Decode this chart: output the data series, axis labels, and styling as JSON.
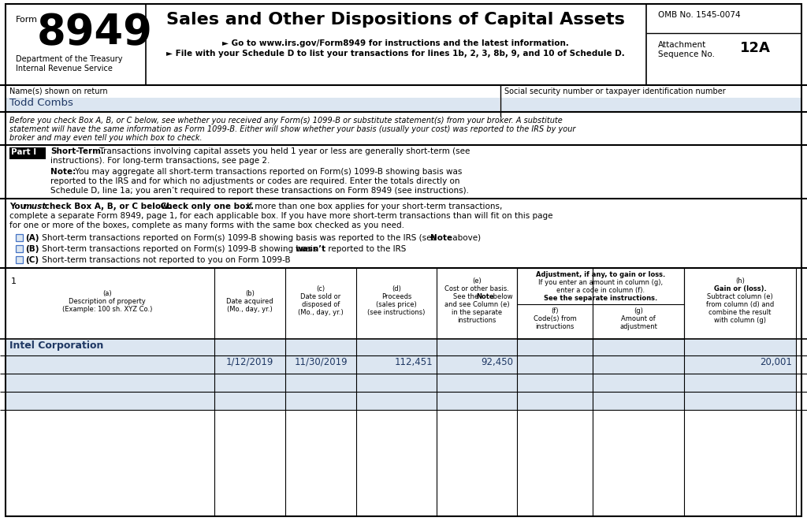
{
  "title": "Sales and Other Dispositions of Capital Assets",
  "form_number": "8949",
  "form_label": "Form",
  "omb": "OMB No. 1545-0074",
  "seq_number": "12A",
  "dept1": "Department of the Treasury",
  "dept2": "Internal Revenue Service",
  "bullet1": "► Go to www.irs.gov/Form8949 for instructions and the latest information.",
  "bullet2": "► File with your Schedule D to list your transactions for lines 1b, 2, 3, 8b, 9, and 10 of Schedule D.",
  "name_label": "Name(s) shown on return",
  "ssn_label": "Social security number or taxpayer identification number",
  "name_value": "Todd Combs",
  "row1_num": "1",
  "row1_desc": "Intel Corporation",
  "row1_date_acq": "1/12/2019",
  "row1_date_sold": "11/30/2019",
  "row1_proceeds": "112,451",
  "row1_cost": "92,450",
  "row1_gain": "20,001",
  "bg_white": "#ffffff",
  "bg_light_blue": "#dce6f1",
  "color_blue": "#1f3864",
  "checkbox_border": "#4472c4",
  "cols": [
    0,
    272,
    362,
    452,
    554,
    656,
    752,
    868,
    1010
  ]
}
